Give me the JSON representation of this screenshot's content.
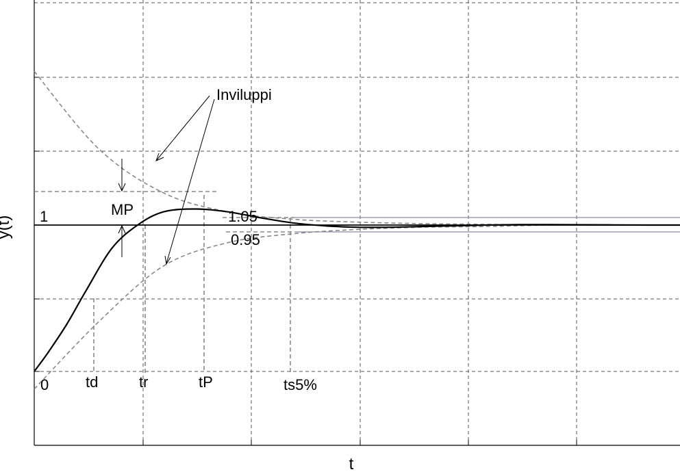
{
  "chart_data": {
    "type": "line",
    "title": "",
    "xlabel": "t",
    "ylabel": "y(t)",
    "grid": true,
    "series": [
      {
        "role": "response",
        "x": [
          0,
          0.02,
          0.05,
          0.08,
          0.12,
          0.16,
          0.2,
          0.25,
          0.3,
          0.35,
          0.4,
          0.45,
          0.5,
          0.55,
          0.6,
          0.65,
          0.7,
          0.75,
          0.8,
          0.85,
          0.9,
          0.95,
          1.0
        ],
        "values": [
          0,
          0.12,
          0.32,
          0.55,
          0.84,
          1.0,
          1.09,
          1.11,
          1.09,
          1.05,
          1.015,
          0.995,
          0.985,
          0.985,
          0.99,
          0.995,
          1.0,
          1.003,
          1.003,
          1.002,
          1.001,
          1.0,
          1.0
        ]
      },
      {
        "role": "upper-envelope",
        "x": [
          0,
          0.1,
          0.2,
          0.3,
          0.4,
          0.5,
          0.6,
          0.7,
          0.8,
          0.9,
          1.0
        ],
        "values": [
          2.05,
          1.52,
          1.22,
          1.09,
          1.04,
          1.02,
          1.01,
          1.005,
          1.0,
          1.0,
          1.0
        ]
      },
      {
        "role": "lower-envelope",
        "x": [
          0,
          0.1,
          0.2,
          0.3,
          0.4,
          0.5,
          0.6,
          0.7,
          0.8,
          0.9,
          1.0
        ],
        "values": [
          -0.12,
          0.34,
          0.72,
          0.88,
          0.94,
          0.97,
          0.985,
          0.99,
          1.0,
          1.0,
          1.0
        ]
      }
    ],
    "reference_value": 1,
    "band": {
      "upper": 1.05,
      "lower": 0.95
    }
  },
  "labels": {
    "one": "1",
    "upper_band": "1.05",
    "lower_band": "0.95",
    "overshoot": "MP",
    "envelopes": "Inviluppi",
    "t0": "0",
    "td": "td",
    "tr": "tr",
    "tp": "tP",
    "ts": "ts5%"
  }
}
